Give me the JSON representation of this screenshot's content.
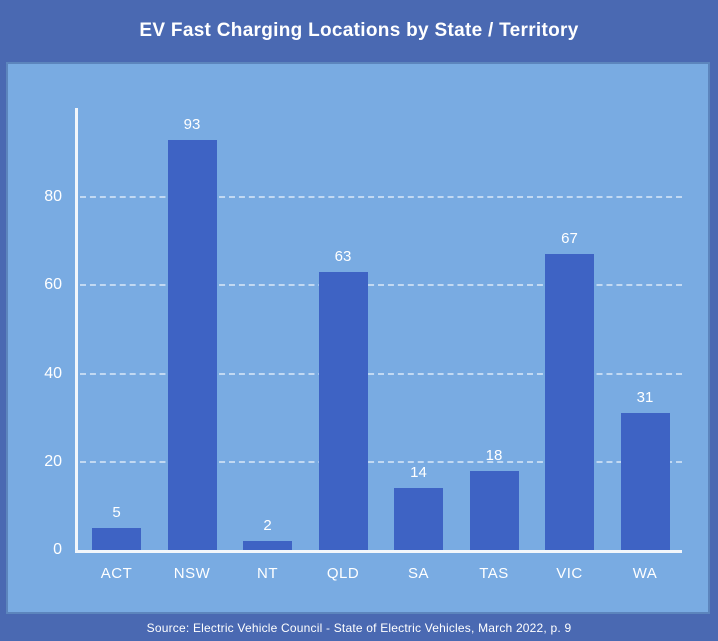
{
  "header": {
    "title": "EV Fast Charging Locations by State / Territory"
  },
  "footer": {
    "source": "Source: Electric Vehicle Council - State of Electric Vehicles, March 2022, p. 9"
  },
  "colors": {
    "frame": "#4a69b2",
    "panel_bg": "#79abe2",
    "bar": "#3e63c4",
    "text": "#ffffff",
    "grid": "rgba(255,255,255,0.55)",
    "axis": "#f2f6fb"
  },
  "chart_data": {
    "type": "bar",
    "title": "EV Fast Charging Locations by State / Territory",
    "categories": [
      "ACT",
      "NSW",
      "NT",
      "QLD",
      "SA",
      "TAS",
      "VIC",
      "WA"
    ],
    "values": [
      5,
      93,
      2,
      63,
      14,
      18,
      67,
      31
    ],
    "xlabel": "",
    "ylabel": "",
    "ylim": [
      0,
      100
    ],
    "yticks": [
      0,
      20,
      40,
      60,
      80
    ],
    "grid": "horizontal-dashed",
    "legend": "none",
    "value_labels": true,
    "source": "Source: Electric Vehicle Council - State of Electric Vehicles, March 2022, p. 9"
  }
}
